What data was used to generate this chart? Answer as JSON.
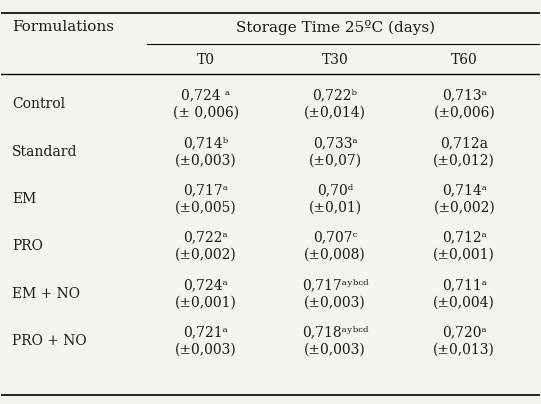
{
  "title": "Storage Time 25ºC (days)",
  "col_header": "Formulations",
  "columns": [
    "T0",
    "T30",
    "T60"
  ],
  "rows": [
    {
      "label": "Control",
      "values": [
        "0,724 ᵃ",
        "0,722ᵇ",
        "0,713ᵃ"
      ],
      "errors": [
        "(± 0,006)",
        "(±0,014)",
        "(±0,006)"
      ]
    },
    {
      "label": "Standard",
      "values": [
        "0,714ᵇ",
        "0,733ᵃ",
        "0,712a"
      ],
      "errors": [
        "(±0,003)",
        "(±0,07)",
        "(±0,012)"
      ]
    },
    {
      "label": "EM",
      "values": [
        "0,717ᵃ",
        "0,70ᵈ",
        "0,714ᵃ"
      ],
      "errors": [
        "(±0,005)",
        "(±0,01)",
        "(±0,002)"
      ]
    },
    {
      "label": "PRO",
      "values": [
        "0,722ᵃ",
        "0,707ᶜ",
        "0,712ᵃ"
      ],
      "errors": [
        "(±0,002)",
        "(±0,008)",
        "(±0,001)"
      ]
    },
    {
      "label": "EM + NO",
      "values": [
        "0,724ᵃ",
        "0,717ᵃʸᵇᶜᵈ",
        "0,711ᵃ"
      ],
      "errors": [
        "(±0,001)",
        "(±0,003)",
        "(±0,004)"
      ]
    },
    {
      "label": "PRO + NO",
      "values": [
        "0,721ᵃ",
        "0,718ᵃʸᵇᶜᵈ",
        "0,720ᵃ"
      ],
      "errors": [
        "(±0,003)",
        "(±0,003)",
        "(±0,013)"
      ]
    }
  ],
  "bg_color": "#f5f5f0",
  "text_color": "#1a1a1a",
  "font_size": 10,
  "header_font_size": 11
}
